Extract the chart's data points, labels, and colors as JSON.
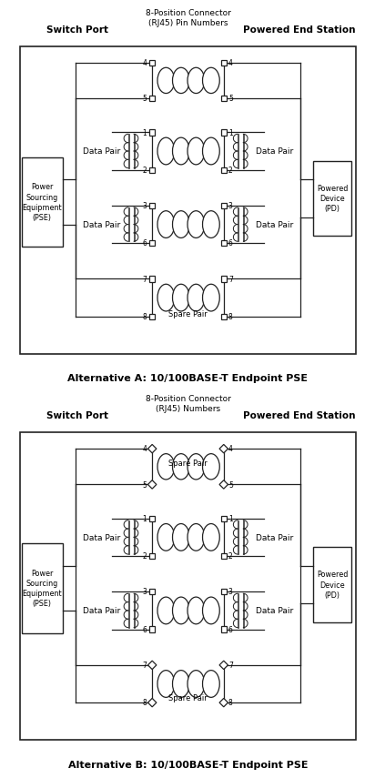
{
  "fig_width": 6.61,
  "fig_height": 8.34,
  "bg_color": "#ffffff",
  "panel_A": {
    "title": "Alternative A: 10/100BASE-T Endpoint PSE",
    "header_center": "8-Position Connector\n(RJ45) Pin Numbers",
    "header_left": "Switch Port",
    "header_right": "Powered End Station",
    "left_box_label": "Power\nSourcing\nEquipment\n(PSE)",
    "right_box_label": "Powered\nDevice\n(PD)"
  },
  "panel_B": {
    "title": "Alternative B: 10/100BASE-T Endpoint PSE",
    "header_center": "8-Position Connector\n(RJ45) Numbers",
    "header_left": "Switch Port",
    "header_right": "Powered End Station",
    "left_box_label": "Power\nSourcing\nEquipment\n(PSE)",
    "right_box_label": "Powered\nDevice\n(PD)"
  },
  "lc": "#222222",
  "lw": 0.9
}
